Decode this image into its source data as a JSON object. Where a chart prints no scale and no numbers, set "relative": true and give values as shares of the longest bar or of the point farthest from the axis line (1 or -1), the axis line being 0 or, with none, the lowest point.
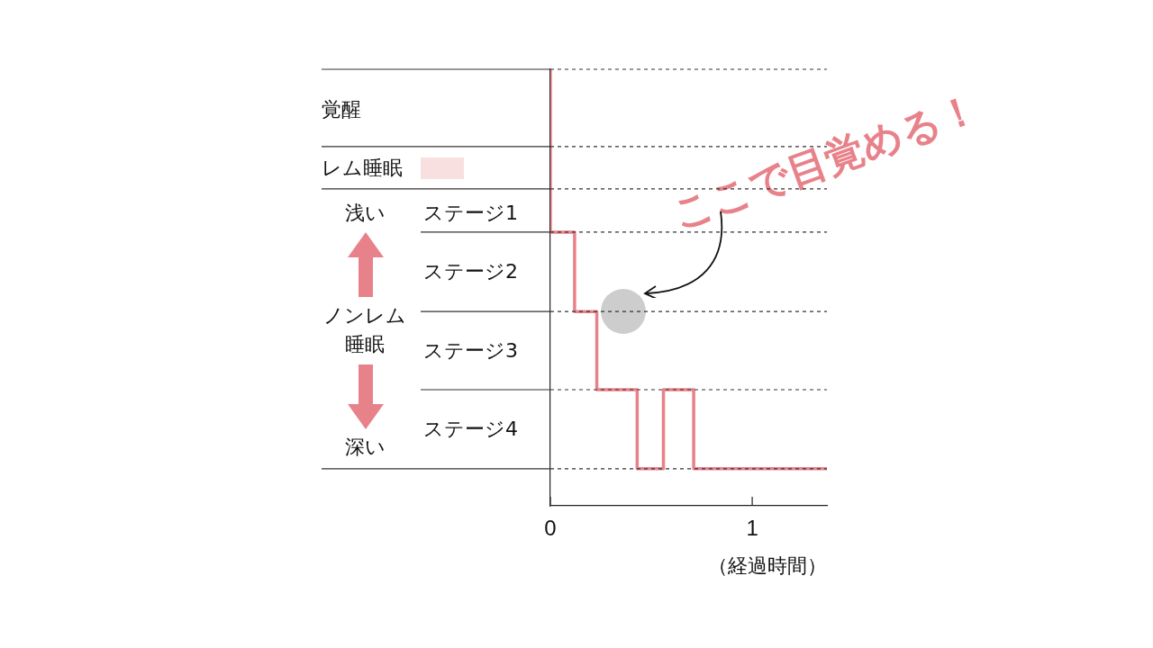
{
  "chart_data": {
    "type": "step",
    "xlabel": "（経過時間）",
    "xlim": [
      0,
      1.37
    ],
    "xticks": [
      0,
      1
    ],
    "relative": true,
    "series": [
      {
        "color": "#e8828a",
        "x": [
          0,
          0.12,
          0.23,
          0.43,
          0.56,
          0.71,
          0.86,
          1.37
        ],
        "values": [
          1,
          0.627,
          0.445,
          0.266,
          0.085,
          0.266,
          0.085,
          0.085
        ]
      }
    ],
    "ref_lines": [
      {
        "axis": "y",
        "value": 1,
        "line_style": "dashed",
        "color": "#333333"
      },
      {
        "axis": "y",
        "value": 0.823,
        "line_style": "dashed",
        "color": "#333333"
      },
      {
        "axis": "y",
        "value": 0.726,
        "line_style": "dashed",
        "color": "#333333"
      },
      {
        "axis": "y",
        "value": 0.627,
        "line_style": "dashed",
        "color": "#333333"
      },
      {
        "axis": "y",
        "value": 0.445,
        "line_style": "dashed",
        "color": "#333333"
      },
      {
        "axis": "y",
        "value": 0.266,
        "line_style": "dashed",
        "color": "#333333"
      },
      {
        "axis": "y",
        "value": 0.085,
        "line_style": "dashed",
        "color": "#333333"
      }
    ],
    "legend": false,
    "annotations": [
      "覚醒",
      "レム睡眠",
      "浅い",
      "ステージ1",
      "ステージ2",
      "ノンレム睡眠",
      "ステージ3",
      "ステージ4",
      "深い",
      "ここで目覚める！"
    ]
  }
}
